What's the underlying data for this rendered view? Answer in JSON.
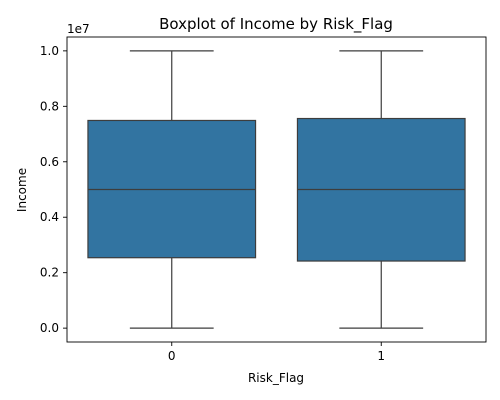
{
  "chart_data": {
    "type": "boxplot",
    "title": "Boxplot of Income by Risk_Flag",
    "xlabel": "Risk_Flag",
    "ylabel": "Income",
    "y_offset_label": "1e7",
    "categories": [
      "0",
      "1"
    ],
    "boxes": [
      {
        "category": "0",
        "whisker_low": 0.0,
        "q1": 0.254,
        "median": 0.5,
        "q3": 0.749,
        "whisker_high": 1.0
      },
      {
        "category": "1",
        "whisker_low": 0.0,
        "q1": 0.242,
        "median": 0.5,
        "q3": 0.756,
        "whisker_high": 1.0
      }
    ],
    "ylim": [
      -0.05,
      1.05
    ],
    "yticks": [
      0.0,
      0.2,
      0.4,
      0.6,
      0.8,
      1.0
    ],
    "ytick_labels": [
      "0.0",
      "0.2",
      "0.4",
      "0.6",
      "0.8",
      "1.0"
    ],
    "grid": false,
    "colors": {
      "box_fill": "#3274a1",
      "line": "#3d3d3d"
    }
  }
}
